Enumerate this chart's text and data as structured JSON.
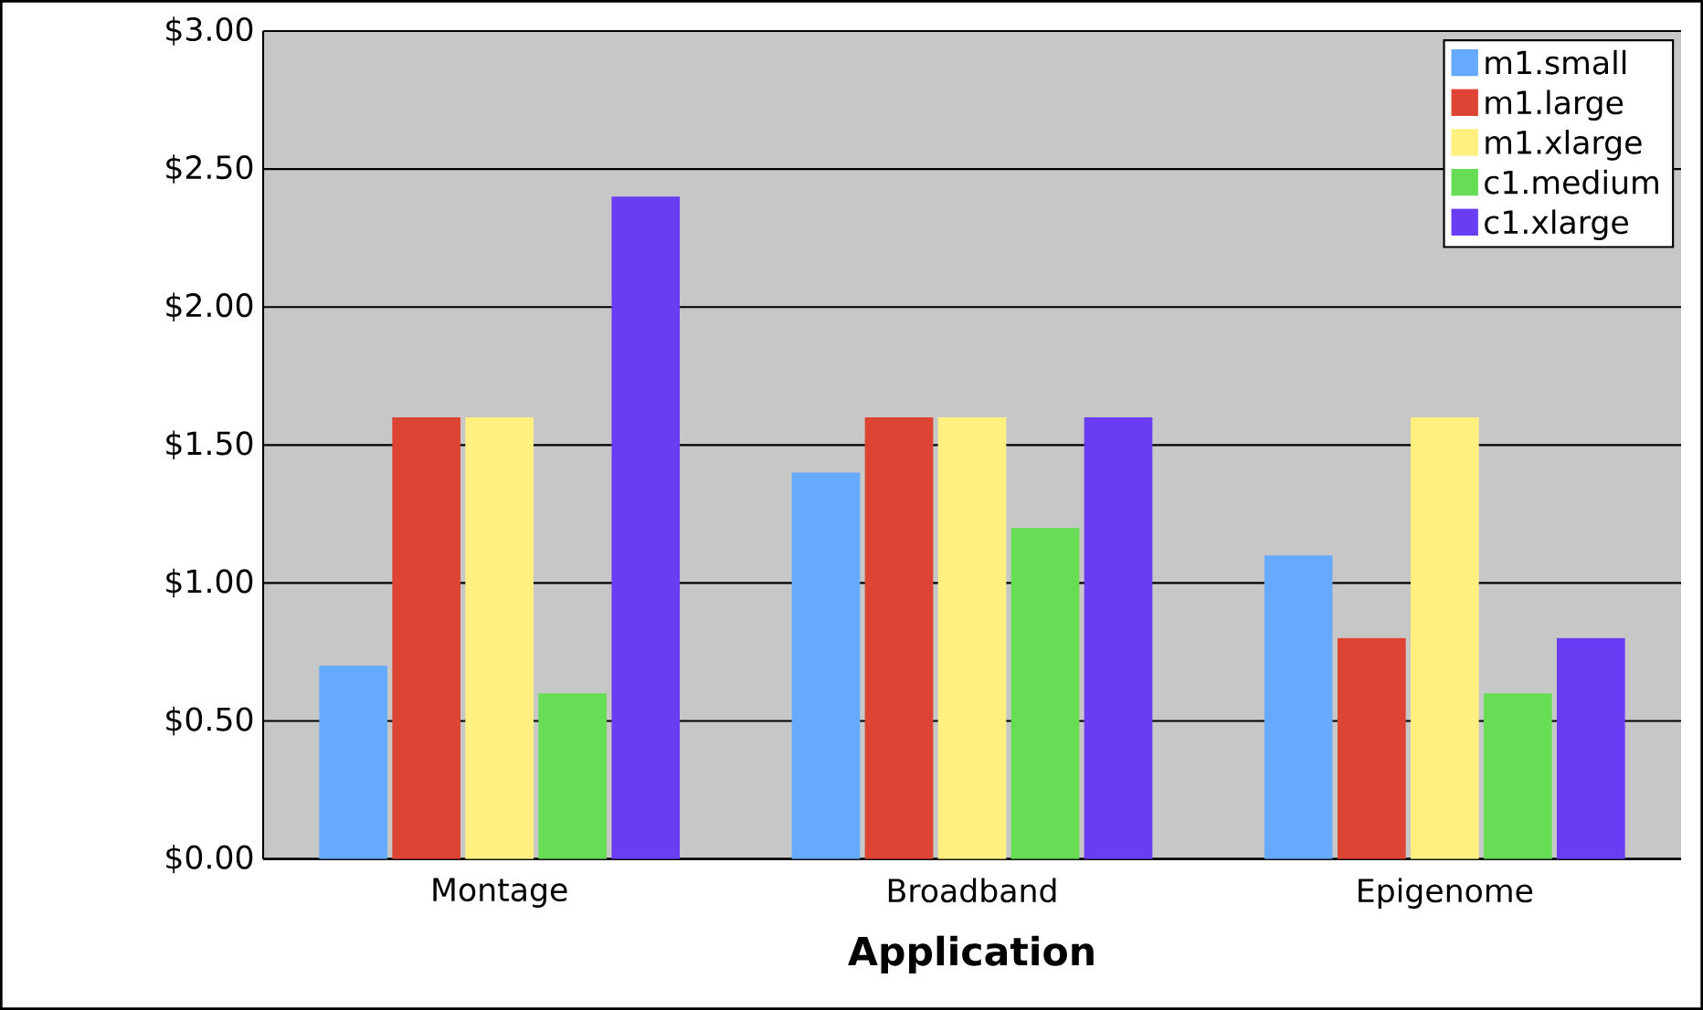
{
  "chart_data": {
    "type": "bar",
    "xlabel": "Application",
    "categories": [
      "Montage",
      "Broadband",
      "Epigenome"
    ],
    "series": [
      {
        "name": "m1.small",
        "color": "#66aaff",
        "values": [
          0.7,
          1.4,
          1.1
        ]
      },
      {
        "name": "m1.large",
        "color": "#dd4433",
        "values": [
          1.6,
          1.6,
          0.8
        ]
      },
      {
        "name": "m1.xlarge",
        "color": "#fff080",
        "values": [
          1.6,
          1.6,
          1.6
        ]
      },
      {
        "name": "c1.medium",
        "color": "#66dd55",
        "values": [
          0.6,
          1.2,
          0.6
        ]
      },
      {
        "name": "c1.xlarge",
        "color": "#6a3df5",
        "values": [
          2.4,
          1.6,
          0.8
        ]
      }
    ],
    "ylim": [
      0,
      3
    ],
    "yticks": [
      {
        "value": 0,
        "label": "$0.00"
      },
      {
        "value": 0.5,
        "label": "$0.50"
      },
      {
        "value": 1,
        "label": "$1.00"
      },
      {
        "value": 1.5,
        "label": "$1.50"
      },
      {
        "value": 2,
        "label": "$2.00"
      },
      {
        "value": 2.5,
        "label": "$2.50"
      },
      {
        "value": 3,
        "label": "$3.00"
      }
    ],
    "grid": "y",
    "legend": "top right"
  }
}
